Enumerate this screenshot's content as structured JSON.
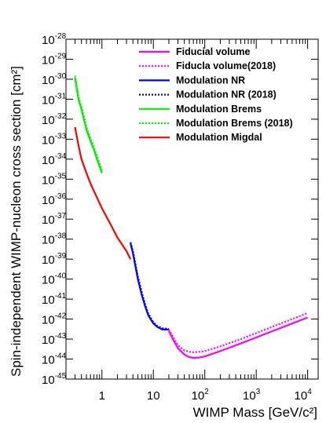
{
  "chart_data": {
    "type": "line",
    "xlabel": "WIMP Mass [GeV/c²]",
    "ylabel": "Spin-independent WIMP-nucleon cross section [cm²]",
    "x_scale": "log",
    "y_scale": "log",
    "xlim": [
      0.2,
      16000
    ],
    "ylim": [
      1e-45,
      1e-28
    ],
    "x_ticks": [
      {
        "value": 1,
        "label": "1"
      },
      {
        "value": 10,
        "label": "10"
      },
      {
        "value": 100,
        "label": "10",
        "exp": "2"
      },
      {
        "value": 1000,
        "label": "10",
        "exp": "3"
      },
      {
        "value": 10000,
        "label": "10",
        "exp": "4"
      }
    ],
    "y_ticks": [
      {
        "value": 1e-28,
        "label": "10",
        "exp": "-28"
      },
      {
        "value": 1e-29,
        "label": "10",
        "exp": "-29"
      },
      {
        "value": 1e-30,
        "label": "10",
        "exp": "-30"
      },
      {
        "value": 1e-31,
        "label": "10",
        "exp": "-31"
      },
      {
        "value": 1e-32,
        "label": "10",
        "exp": "-32"
      },
      {
        "value": 1e-33,
        "label": "10",
        "exp": "-33"
      },
      {
        "value": 1e-34,
        "label": "10",
        "exp": "-34"
      },
      {
        "value": 1e-35,
        "label": "10",
        "exp": "-35"
      },
      {
        "value": 1e-36,
        "label": "10",
        "exp": "-36"
      },
      {
        "value": 1e-37,
        "label": "10",
        "exp": "-37"
      },
      {
        "value": 1e-38,
        "label": "10",
        "exp": "-38"
      },
      {
        "value": 1e-39,
        "label": "10",
        "exp": "-39"
      },
      {
        "value": 1e-40,
        "label": "10",
        "exp": "-40"
      },
      {
        "value": 1e-41,
        "label": "10",
        "exp": "-41"
      },
      {
        "value": 1e-42,
        "label": "10",
        "exp": "-42"
      },
      {
        "value": 1e-43,
        "label": "10",
        "exp": "-43"
      },
      {
        "value": 1e-44,
        "label": "10",
        "exp": "-44"
      },
      {
        "value": 1e-45,
        "label": "10",
        "exp": "-45"
      }
    ],
    "grid": false,
    "legend_position": "top-right",
    "series": [
      {
        "name": "Fiducial volume",
        "color": "#ff00ff",
        "dash": "solid",
        "x": [
          20,
          25,
          30,
          40,
          50,
          60,
          80,
          100,
          200,
          500,
          1000,
          2000,
          5000,
          10000
        ],
        "y": [
          2.5e-43,
          8e-44,
          3.5e-44,
          1.7e-44,
          1.25e-44,
          1.15e-44,
          1.2e-44,
          1.35e-44,
          2.5e-44,
          6e-44,
          1.2e-43,
          2.4e-43,
          6e-43,
          1.2e-42
        ]
      },
      {
        "name": "Fiducla volume(2018)",
        "color": "#ff00ff",
        "dash": "dotted",
        "x": [
          20,
          25,
          30,
          40,
          50,
          60,
          80,
          100,
          200,
          500,
          1000,
          2000,
          5000,
          10000
        ],
        "y": [
          3e-43,
          1.1e-43,
          5e-44,
          2.7e-44,
          2.3e-44,
          2.2e-44,
          2.3e-44,
          2.5e-44,
          4.3e-44,
          1e-43,
          2e-43,
          4e-43,
          1e-42,
          2e-42
        ]
      },
      {
        "name": "Modulation NR",
        "color": "#0000ff",
        "dash": "solid",
        "x": [
          3.6,
          4,
          5,
          6,
          7,
          8,
          10,
          12,
          15,
          20
        ],
        "y": [
          6e-39,
          2e-39,
          1e-40,
          1.5e-41,
          4e-42,
          1.5e-42,
          6e-43,
          4e-43,
          3e-43,
          3e-43
        ]
      },
      {
        "name": "Modulation NR (2018)",
        "color": "#0000ff",
        "dash": "dotted",
        "x": [
          3.6,
          4,
          5,
          6,
          7,
          8,
          10,
          12,
          15,
          20
        ],
        "y": [
          7e-39,
          2.5e-39,
          1.4e-40,
          2e-41,
          5e-42,
          1.8e-42,
          7e-43,
          4.5e-43,
          3.5e-43,
          3.2e-43
        ]
      },
      {
        "name": "Modulation Brems",
        "color": "#00ee00",
        "dash": "solid",
        "x": [
          0.3,
          0.35,
          0.4,
          0.5,
          0.6,
          0.7,
          0.8,
          0.9,
          1.0
        ],
        "y": [
          1.2e-30,
          1e-31,
          3e-32,
          3e-33,
          8e-34,
          3e-34,
          1e-34,
          4.5e-35,
          2e-35
        ]
      },
      {
        "name": "Modulation Brems (2018)",
        "color": "#00ee00",
        "dash": "dotted",
        "x": [
          0.3,
          0.35,
          0.4,
          0.5,
          0.6,
          0.7,
          0.8,
          0.9,
          1.0
        ],
        "y": [
          1.5e-30,
          1.3e-31,
          4e-32,
          4e-33,
          1.1e-33,
          4e-34,
          1.4e-34,
          6e-35,
          2.5e-35
        ]
      },
      {
        "name": "Modulation Migdal",
        "color": "#ff0000",
        "dash": "solid",
        "x": [
          0.3,
          0.35,
          0.4,
          0.5,
          0.6,
          0.8,
          1.0,
          1.5,
          2.0,
          3.0,
          3.6
        ],
        "y": [
          4e-33,
          5e-34,
          1e-34,
          2e-35,
          6e-36,
          1.2e-36,
          3.5e-37,
          5e-38,
          1.2e-38,
          2.5e-39,
          1e-39
        ]
      }
    ]
  }
}
